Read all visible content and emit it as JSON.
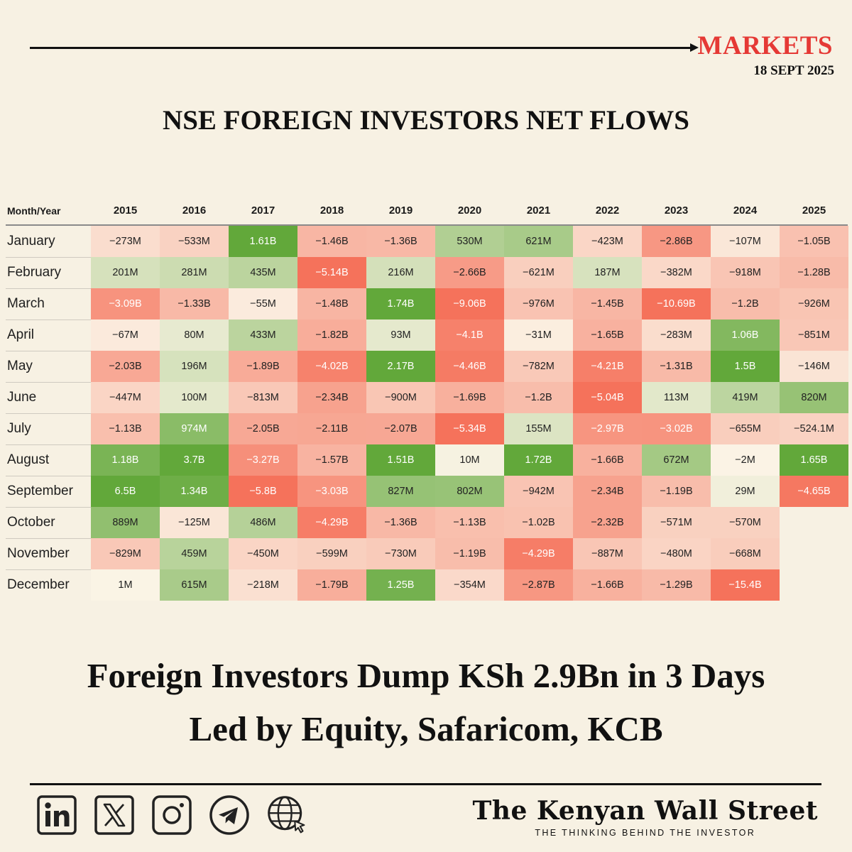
{
  "header": {
    "section": "MARKETS",
    "date": "18 SEPT 2025"
  },
  "chart_data": {
    "type": "heatmap",
    "title": "NSE FOREIGN INVESTORS NET FLOWS",
    "corner_label": "Month/Year",
    "x_categories": [
      "2015",
      "2016",
      "2017",
      "2018",
      "2019",
      "2020",
      "2021",
      "2022",
      "2023",
      "2024",
      "2025"
    ],
    "y_categories": [
      "January",
      "February",
      "March",
      "April",
      "May",
      "June",
      "July",
      "August",
      "September",
      "October",
      "November",
      "December"
    ],
    "labels": [
      [
        "−273M",
        "−533M",
        "1.61B",
        "−1.46B",
        "−1.36B",
        "530M",
        "621M",
        "−423M",
        "−2.86B",
        "−107M",
        "−1.05B"
      ],
      [
        "201M",
        "281M",
        "435M",
        "−5.14B",
        "216M",
        "−2.66B",
        "−621M",
        "187M",
        "−382M",
        "−918M",
        "−1.28B"
      ],
      [
        "−3.09B",
        "−1.33B",
        "−55M",
        "−1.48B",
        "1.74B",
        "−9.06B",
        "−976M",
        "−1.45B",
        "−10.69B",
        "−1.2B",
        "−926M"
      ],
      [
        "−67M",
        "80M",
        "433M",
        "−1.82B",
        "93M",
        "−4.1B",
        "−31M",
        "−1.65B",
        "−283M",
        "1.06B",
        "−851M"
      ],
      [
        "−2.03B",
        "196M",
        "−1.89B",
        "−4.02B",
        "2.17B",
        "−4.46B",
        "−782M",
        "−4.21B",
        "−1.31B",
        "1.5B",
        "−146M"
      ],
      [
        "−447M",
        "100M",
        "−813M",
        "−2.34B",
        "−900M",
        "−1.69B",
        "−1.2B",
        "−5.04B",
        "113M",
        "419M",
        "820M"
      ],
      [
        "−1.13B",
        "974M",
        "−2.05B",
        "−2.11B",
        "−2.07B",
        "−5.34B",
        "155M",
        "−2.97B",
        "−3.02B",
        "−655M",
        "−524.1M"
      ],
      [
        "1.18B",
        "3.7B",
        "−3.27B",
        "−1.57B",
        "1.51B",
        "10M",
        "1.72B",
        "−1.66B",
        "672M",
        "−2M",
        "1.65B"
      ],
      [
        "6.5B",
        "1.34B",
        "−5.8B",
        "−3.03B",
        "827M",
        "802M",
        "−942M",
        "−2.34B",
        "−1.19B",
        "29M",
        "−4.65B"
      ],
      [
        "889M",
        "−125M",
        "486M",
        "−4.29B",
        "−1.36B",
        "−1.13B",
        "−1.02B",
        "−2.32B",
        "−571M",
        "−570M",
        ""
      ],
      [
        "−829M",
        "459M",
        "−450M",
        "−599M",
        "−730M",
        "−1.19B",
        "−4.29B",
        "−887M",
        "−480M",
        "−668M",
        ""
      ],
      [
        "1M",
        "615M",
        "−218M",
        "−1.79B",
        "1.25B",
        "−354M",
        "−2.87B",
        "−1.66B",
        "−1.29B",
        "−15.4B",
        ""
      ]
    ],
    "values_millions": [
      [
        -273,
        -533,
        1610,
        -1460,
        -1360,
        530,
        621,
        -423,
        -2860,
        -107,
        -1050
      ],
      [
        201,
        281,
        435,
        -5140,
        216,
        -2660,
        -621,
        187,
        -382,
        -918,
        -1280
      ],
      [
        -3090,
        -1330,
        -55,
        -1480,
        1740,
        -9060,
        -976,
        -1450,
        -10690,
        -1200,
        -926
      ],
      [
        -67,
        80,
        433,
        -1820,
        93,
        -4100,
        -31,
        -1650,
        -283,
        1060,
        -851
      ],
      [
        -2030,
        196,
        -1890,
        -4020,
        2170,
        -4460,
        -782,
        -4210,
        -1310,
        1500,
        -146
      ],
      [
        -447,
        100,
        -813,
        -2340,
        -900,
        -1690,
        -1200,
        -5040,
        113,
        419,
        820
      ],
      [
        -1130,
        974,
        -2050,
        -2110,
        -2070,
        -5340,
        155,
        -2970,
        -3020,
        -655,
        -524.1
      ],
      [
        1180,
        3700,
        -3270,
        -1570,
        1510,
        10,
        1720,
        -1660,
        672,
        -2,
        1650
      ],
      [
        6500,
        1340,
        -5800,
        -3030,
        827,
        802,
        -942,
        -2340,
        -1190,
        29,
        -4650
      ],
      [
        889,
        -125,
        486,
        -4290,
        -1360,
        -1130,
        -1020,
        -2320,
        -571,
        -570,
        null
      ],
      [
        -829,
        459,
        -450,
        -599,
        -730,
        -1190,
        -4290,
        -887,
        -480,
        -668,
        null
      ],
      [
        1,
        615,
        -218,
        -1790,
        1250,
        -354,
        -2870,
        -1660,
        -1290,
        -15400,
        null
      ]
    ],
    "color_scale": {
      "negative": "#f5725b",
      "neutral": "#fbf4e6",
      "positive": "#62a83a"
    }
  },
  "headline": {
    "line1": "Foreign Investors Dump KSh 2.9Bn in 3 Days",
    "line2": "Led by Equity, Safaricom, KCB"
  },
  "footer": {
    "socials": [
      "linkedin-icon",
      "x-icon",
      "instagram-icon",
      "telegram-icon",
      "globe-icon"
    ],
    "brand_name": "The Kenyan Wall Street",
    "brand_tagline": "THE THINKING BEHIND THE INVESTOR"
  }
}
